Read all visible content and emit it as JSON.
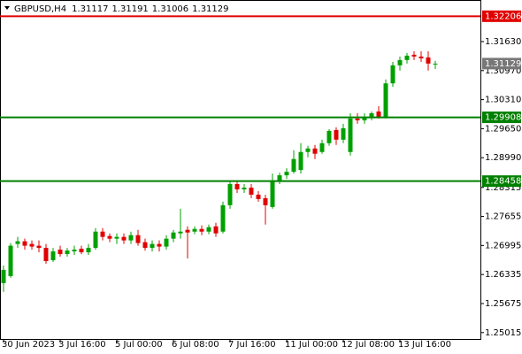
{
  "chart_data": {
    "type": "candlestick",
    "symbol": "GBPUSD,H4",
    "categories": [
      "30 Jun 2023",
      null,
      null,
      null,
      null,
      null,
      null,
      null,
      "3 Jul 16:00",
      null,
      null,
      null,
      null,
      null,
      null,
      null,
      "5 Jul 00:00",
      null,
      null,
      null,
      null,
      null,
      null,
      null,
      "6 Jul 08:00",
      null,
      null,
      null,
      null,
      null,
      null,
      null,
      "7 Jul 16:00",
      null,
      null,
      null,
      null,
      null,
      null,
      null,
      "11 Jul 00:00",
      null,
      null,
      null,
      null,
      null,
      null,
      null,
      "12 Jul 08:00",
      null,
      null,
      null,
      null,
      null,
      null,
      null,
      "13 Jul 16:00",
      null,
      null,
      null,
      null,
      null
    ],
    "open": [
      1.2614,
      1.263,
      1.2703,
      1.2709,
      1.2703,
      1.2699,
      1.2694,
      1.2666,
      1.269,
      1.268,
      1.2686,
      1.2692,
      1.2684,
      1.2694,
      1.2731,
      1.2721,
      1.2715,
      1.2719,
      1.2711,
      1.2723,
      1.2707,
      1.2694,
      1.2703,
      1.2697,
      1.2715,
      1.2727,
      1.2735,
      1.2731,
      1.2737,
      1.2731,
      1.2743,
      1.2731,
      1.2791,
      1.2839,
      1.2827,
      1.2831,
      1.2815,
      1.2807,
      1.2787,
      1.2847,
      1.2859,
      1.2867,
      1.2871,
      1.2912,
      1.292,
      1.2912,
      1.2932,
      1.2962,
      1.294,
      1.2912,
      1.2988,
      1.2984,
      1.2992,
      1.3004,
      1.2992,
      1.3068,
      1.3109,
      1.3121,
      1.3133,
      1.3129,
      1.3127,
      1.31117
    ],
    "high": [
      1.2654,
      1.2705,
      1.2719,
      1.2715,
      1.2711,
      1.2711,
      1.2703,
      1.2694,
      1.2699,
      1.2694,
      1.2699,
      1.2699,
      1.2703,
      1.2739,
      1.2739,
      1.2727,
      1.2727,
      1.2727,
      1.2731,
      1.2735,
      1.2715,
      1.2711,
      1.2711,
      1.2723,
      1.2735,
      1.2783,
      1.2743,
      1.2743,
      1.2745,
      1.2747,
      1.2751,
      1.2799,
      1.2847,
      1.2847,
      1.2839,
      1.2839,
      1.2823,
      1.2815,
      1.2863,
      1.2865,
      1.2875,
      1.2916,
      1.2932,
      1.2926,
      1.2928,
      1.294,
      1.2964,
      1.2968,
      1.2976,
      1.3,
      1.3,
      1.3,
      1.3004,
      1.3016,
      1.3077,
      1.3117,
      1.3129,
      1.3137,
      1.3141,
      1.3141,
      1.3141,
      1.31191
    ],
    "low": [
      1.2594,
      1.2626,
      1.2694,
      1.269,
      1.269,
      1.2684,
      1.2658,
      1.2662,
      1.2674,
      1.2674,
      1.2678,
      1.268,
      1.2678,
      1.269,
      1.2711,
      1.2707,
      1.2703,
      1.2703,
      1.2703,
      1.2699,
      1.2688,
      1.2686,
      1.2686,
      1.269,
      1.2707,
      1.2715,
      1.267,
      1.2725,
      1.2723,
      1.2725,
      1.2719,
      1.2727,
      1.2783,
      1.2819,
      1.2819,
      1.2807,
      1.2799,
      1.2747,
      1.2783,
      1.2839,
      1.2851,
      1.2863,
      1.2863,
      1.29,
      1.2896,
      1.2908,
      1.2926,
      1.2928,
      1.2932,
      1.2904,
      1.2976,
      1.2976,
      1.2984,
      1.2988,
      1.2988,
      1.306,
      1.3097,
      1.3113,
      1.3121,
      1.3117,
      1.3097,
      1.31006
    ],
    "close": [
      1.2644,
      1.2699,
      1.2709,
      1.2699,
      1.2697,
      1.2694,
      1.2664,
      1.2686,
      1.268,
      1.2688,
      1.269,
      1.2684,
      1.2694,
      1.2731,
      1.2719,
      1.2715,
      1.2719,
      1.2711,
      1.2723,
      1.2705,
      1.2694,
      1.2703,
      1.2697,
      1.2715,
      1.2729,
      1.2731,
      1.2729,
      1.2737,
      1.2731,
      1.2741,
      1.2727,
      1.2791,
      1.2839,
      1.2827,
      1.2831,
      1.2815,
      1.2805,
      1.2791,
      1.2847,
      1.2859,
      1.2867,
      1.2896,
      1.2912,
      1.292,
      1.2908,
      1.2932,
      1.296,
      1.294,
      1.2966,
      1.2988,
      1.2984,
      1.2992,
      1.3,
      1.2992,
      1.3068,
      1.3109,
      1.3121,
      1.3131,
      1.3129,
      1.3125,
      1.3113,
      1.31129
    ],
    "up_color": "#00a000",
    "down_color": "#e00000",
    "price_color": "#777777",
    "hlines": [
      {
        "value": 1.32206,
        "color": "#e00000"
      },
      {
        "value": 1.29908,
        "color": "#008000"
      },
      {
        "value": 1.28458,
        "color": "#008000"
      }
    ],
    "ylim": [
      1.2487,
      1.32575
    ],
    "yticks": [
      {
        "value": 1.3163,
        "label": "1.31630"
      },
      {
        "value": 1.3097,
        "label": "1.30970"
      },
      {
        "value": 1.3031,
        "label": "1.30310"
      },
      {
        "value": 1.2965,
        "label": "1.29650"
      },
      {
        "value": 1.2899,
        "label": "1.28990"
      },
      1.28315,
      1.27655,
      1.26995,
      1.26335,
      1.25675,
      1.25015
    ]
  }
}
